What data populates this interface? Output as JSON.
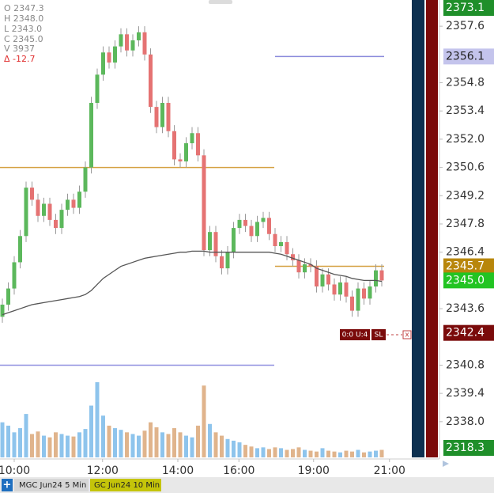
{
  "chart_data": {
    "type": "candlestick",
    "info": {
      "open": "O 2347.3",
      "high": "H 2348.0",
      "low": "L 2343.0",
      "close": "C 2345.0",
      "volume": "V    3937",
      "change": "Δ  -12.7"
    },
    "open": [
      2343.2,
      2343.8,
      2344.6,
      2345.9,
      2347.2,
      2349.6,
      2349.0,
      2348.2,
      2348.8,
      2348.0,
      2347.6,
      2348.5,
      2349.0,
      2348.6,
      2349.4,
      2350.6,
      2353.8,
      2355.2,
      2356.3,
      2355.8,
      2356.6,
      2357.2,
      2356.4,
      2356.9,
      2357.3,
      2356.2,
      2353.6,
      2352.6,
      2353.8,
      2352.4,
      2351.0,
      2350.9,
      2351.8,
      2352.3,
      2351.2,
      2346.5,
      2347.4,
      2346.2,
      2345.6,
      2346.4,
      2347.6,
      2348.0,
      2347.7,
      2347.2,
      2347.9,
      2348.1,
      2347.3,
      2346.7,
      2346.9,
      2346.3,
      2346.0,
      2345.4,
      2345.8,
      2345.7,
      2344.7,
      2345.3,
      2344.8,
      2344.3,
      2344.9,
      2344.2,
      2343.5,
      2344.6,
      2344.1,
      2344.7,
      2345.5
    ],
    "high": [
      2344.1,
      2344.9,
      2346.2,
      2347.5,
      2349.9,
      2349.9,
      2349.3,
      2349.1,
      2349.1,
      2348.3,
      2348.8,
      2349.3,
      2349.3,
      2349.7,
      2350.9,
      2354.1,
      2355.5,
      2356.6,
      2356.6,
      2356.9,
      2357.5,
      2357.5,
      2357.2,
      2357.6,
      2357.6,
      2356.5,
      2353.9,
      2354.1,
      2354.1,
      2352.7,
      2351.3,
      2352.1,
      2352.6,
      2352.6,
      2351.5,
      2347.7,
      2347.7,
      2346.5,
      2346.7,
      2347.9,
      2348.3,
      2348.3,
      2348.0,
      2348.2,
      2348.4,
      2348.4,
      2347.6,
      2347.2,
      2347.2,
      2346.6,
      2346.3,
      2346.1,
      2346.1,
      2346.0,
      2345.6,
      2345.6,
      2345.1,
      2345.2,
      2345.2,
      2344.5,
      2344.9,
      2344.9,
      2345.0,
      2345.8,
      2345.8
    ],
    "low": [
      2342.9,
      2343.5,
      2344.3,
      2345.6,
      2346.9,
      2348.7,
      2347.9,
      2347.9,
      2347.7,
      2347.3,
      2347.3,
      2348.2,
      2348.3,
      2348.3,
      2349.1,
      2350.3,
      2353.5,
      2354.9,
      2355.5,
      2355.5,
      2356.3,
      2356.1,
      2356.1,
      2356.6,
      2355.9,
      2353.3,
      2352.3,
      2352.3,
      2352.1,
      2350.7,
      2350.6,
      2350.6,
      2351.5,
      2350.9,
      2346.2,
      2346.2,
      2345.9,
      2345.3,
      2345.3,
      2346.1,
      2347.3,
      2347.4,
      2346.9,
      2346.9,
      2347.6,
      2347.0,
      2346.4,
      2346.4,
      2346.0,
      2345.7,
      2345.1,
      2345.1,
      2345.4,
      2344.4,
      2344.4,
      2344.5,
      2344.0,
      2344.0,
      2343.9,
      2343.2,
      2343.2,
      2343.8,
      2343.8,
      2344.4,
      2344.7
    ],
    "close": [
      2343.8,
      2344.6,
      2345.9,
      2347.2,
      2349.6,
      2349.0,
      2348.2,
      2348.8,
      2348.0,
      2347.6,
      2348.5,
      2349.0,
      2348.6,
      2349.4,
      2350.6,
      2353.8,
      2355.2,
      2356.3,
      2355.8,
      2356.6,
      2357.2,
      2356.4,
      2356.9,
      2357.3,
      2356.2,
      2353.6,
      2352.6,
      2353.8,
      2352.4,
      2351.0,
      2350.9,
      2351.8,
      2352.3,
      2351.2,
      2346.5,
      2347.4,
      2346.2,
      2345.6,
      2346.4,
      2347.6,
      2348.0,
      2347.7,
      2347.2,
      2347.9,
      2348.1,
      2347.3,
      2346.7,
      2346.9,
      2346.3,
      2346.0,
      2345.4,
      2345.8,
      2345.7,
      2344.7,
      2345.3,
      2344.8,
      2344.3,
      2344.9,
      2344.2,
      2343.5,
      2344.6,
      2344.1,
      2344.7,
      2345.5,
      2345.0
    ],
    "volume": [
      420,
      380,
      300,
      350,
      520,
      280,
      310,
      260,
      240,
      300,
      280,
      260,
      250,
      300,
      340,
      620,
      900,
      500,
      380,
      350,
      330,
      300,
      280,
      260,
      320,
      420,
      360,
      300,
      280,
      350,
      300,
      260,
      240,
      380,
      860,
      400,
      300,
      260,
      220,
      200,
      180,
      150,
      130,
      110,
      120,
      100,
      120,
      110,
      90,
      100,
      120,
      90,
      80,
      70,
      110,
      80,
      70,
      60,
      80,
      70,
      90,
      60,
      70,
      80,
      90
    ],
    "average": [
      2343.3,
      2343.4,
      2343.5,
      2343.6,
      2343.7,
      2343.8,
      2343.85,
      2343.9,
      2343.95,
      2344.0,
      2344.05,
      2344.1,
      2344.15,
      2344.2,
      2344.3,
      2344.5,
      2344.8,
      2345.1,
      2345.3,
      2345.5,
      2345.7,
      2345.8,
      2345.9,
      2346.0,
      2346.1,
      2346.15,
      2346.2,
      2346.25,
      2346.3,
      2346.35,
      2346.4,
      2346.4,
      2346.45,
      2346.45,
      2346.45,
      2346.4,
      2346.4,
      2346.4,
      2346.4,
      2346.4,
      2346.4,
      2346.4,
      2346.4,
      2346.4,
      2346.4,
      2346.4,
      2346.35,
      2346.3,
      2346.2,
      2346.1,
      2346.0,
      2345.9,
      2345.8,
      2345.6,
      2345.5,
      2345.4,
      2345.3,
      2345.25,
      2345.2,
      2345.1,
      2345.05,
      2345.0,
      2345.0,
      2345.0,
      2344.95
    ],
    "up_color": "#5cb85c",
    "down_color": "#e57373",
    "volume_up_color": "#8ec4ec",
    "volume_down_color": "#e0b48c",
    "average_color": "#555555",
    "ylim": [
      2336.15,
      2358.9
    ],
    "yticks": [
      2357.6,
      2354.8,
      2353.4,
      {
        "value": 2352,
        "label": "2352.0"
      },
      2350.6,
      2349.2,
      2347.8,
      2346.4,
      2343.6,
      2340.8,
      2339.4,
      {
        "value": 2338,
        "label": "2338.0"
      }
    ],
    "xticks": [
      {
        "value": 2,
        "label": "10:00"
      },
      {
        "value": 16.9,
        "label": "12:00"
      },
      {
        "value": 29.6,
        "label": "14:00"
      },
      {
        "value": 39.9,
        "label": "16:00"
      },
      {
        "value": 52.5,
        "label": "19:00"
      },
      {
        "value": 65.3,
        "label": "21:00"
      }
    ],
    "levels": [
      {
        "value": 2356.1,
        "color": "#8c8cdc"
      },
      {
        "value": 2350.6,
        "color": "#d4a040"
      },
      {
        "value": 2345.7,
        "color": "#d4a040"
      },
      {
        "value": 2340.8,
        "color": "#9090e0"
      }
    ],
    "price_tags": [
      {
        "value": 2373.1,
        "label": "2373.1",
        "color": "#1f8f2a",
        "text_color": "#ffffff"
      },
      {
        "value": 2356.1,
        "label": "2356.1",
        "color": "#c4c4ec",
        "text_color": "#222222"
      },
      {
        "value": 2345.7,
        "label": "2345.7",
        "color": "#b8860b",
        "text_color": "#ffffff"
      },
      {
        "value": 2345,
        "label": "2345.0",
        "color": "#22c422",
        "text_color": "#ffffff"
      },
      {
        "value": 2342.4,
        "label": "2342.4",
        "color": "#7a0a0a",
        "text_color": "#ffffff"
      },
      {
        "value": 2318.3,
        "label": "2318.3",
        "color": "#1f8f2a",
        "text_color": "#ffffff"
      }
    ]
  },
  "order": {
    "qty": "0:0 U:4",
    "type": "SL",
    "close": "x"
  },
  "tabs": {
    "add": "+",
    "first": "MGC Jun24 5 Min",
    "second": "GC Jun24 10 Min"
  }
}
